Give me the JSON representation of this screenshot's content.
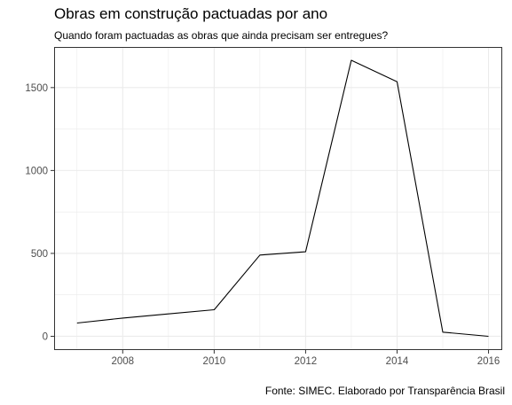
{
  "chart_data": {
    "type": "line",
    "title": "Obras em construção pactuadas por ano",
    "subtitle": "Quando foram pactuadas as obras que ainda precisam ser entregues?",
    "caption": "Fonte: SIMEC. Elaborado por Transparência Brasil",
    "xlabel": "",
    "ylabel": "",
    "x": [
      2007,
      2008,
      2009,
      2010,
      2011,
      2012,
      2013,
      2014,
      2015,
      2016
    ],
    "values": [
      80,
      110,
      135,
      160,
      490,
      510,
      1665,
      1535,
      25,
      0
    ],
    "xlim": [
      2006.5,
      2016.3
    ],
    "ylim": [
      -83,
      1745
    ],
    "x_ticks": [
      2008,
      2010,
      2012,
      2014,
      2016
    ],
    "y_ticks": [
      0,
      500,
      1000,
      1500
    ],
    "grid": true,
    "line_color": "#000000",
    "grid_color": "#ebebeb"
  }
}
